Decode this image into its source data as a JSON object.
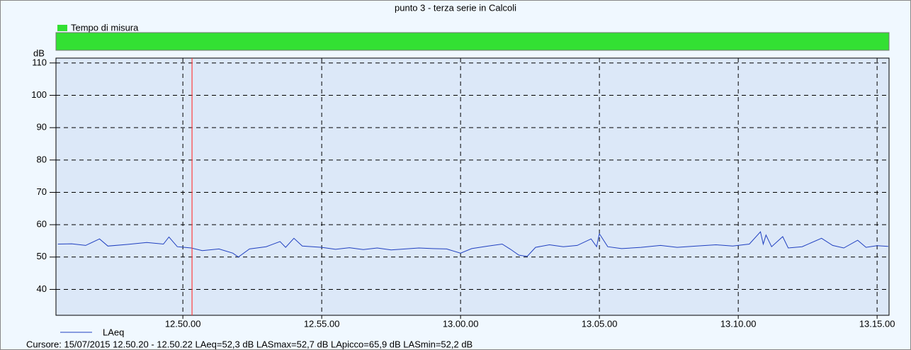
{
  "chart_data": {
    "type": "line",
    "title": "punto 3 - terza serie in Calcoli",
    "ylabel": "dB",
    "band": {
      "name": "Tempo di misura",
      "color": "#33e033"
    },
    "x": [
      765.5,
      766.0,
      766.5,
      767.0,
      767.3,
      768.0,
      768.7,
      769.3,
      769.5,
      769.8,
      770.3,
      770.7,
      771.3,
      771.8,
      772.0,
      772.4,
      773.0,
      773.5,
      773.7,
      774.0,
      774.3,
      775.0,
      775.5,
      776.0,
      776.5,
      777.0,
      777.5,
      778.0,
      778.5,
      779.0,
      779.5,
      780.0,
      780.4,
      781.0,
      781.5,
      781.8,
      782.1,
      782.4,
      782.7,
      783.2,
      783.7,
      784.2,
      784.7,
      784.9,
      785.0,
      785.3,
      785.8,
      786.5,
      787.2,
      787.8,
      788.5,
      789.2,
      789.8,
      790.4,
      790.8,
      790.9,
      791.0,
      791.2,
      791.6,
      791.8,
      792.3,
      793.0,
      793.4,
      793.8,
      794.3,
      794.6,
      795.0,
      795.4
    ],
    "series": [
      {
        "name": "LAeq",
        "color": "#2040c0",
        "values": [
          54.0,
          54.1,
          53.6,
          55.6,
          53.4,
          53.9,
          54.5,
          54.0,
          56.2,
          53.2,
          52.8,
          52.0,
          52.5,
          51.2,
          50.0,
          52.5,
          53.2,
          54.8,
          53.0,
          55.8,
          53.4,
          53.0,
          52.4,
          52.9,
          52.3,
          52.8,
          52.2,
          52.5,
          52.8,
          52.6,
          52.5,
          51.2,
          52.6,
          53.4,
          54.0,
          52.4,
          50.6,
          50.2,
          53.0,
          53.8,
          53.2,
          53.6,
          55.6,
          53.2,
          57.2,
          53.2,
          52.6,
          53.0,
          53.6,
          53.0,
          53.4,
          53.8,
          53.4,
          54.0,
          57.8,
          54.0,
          56.8,
          53.2,
          56.3,
          52.8,
          53.2,
          55.8,
          53.6,
          52.8,
          55.2,
          53.0,
          53.5,
          53.3
        ]
      }
    ],
    "xlim": [
      765.43,
      795.43
    ],
    "xticks": [
      {
        "value": 770,
        "label": "12.50.00"
      },
      {
        "value": 775,
        "label": "12.55.00"
      },
      {
        "value": 780,
        "label": "13.00.00"
      },
      {
        "value": 785,
        "label": "13.05.00"
      },
      {
        "value": 790,
        "label": "13.10.00"
      },
      {
        "value": 795,
        "label": "13.15.00"
      }
    ],
    "ylim": [
      32,
      111.5
    ],
    "yticks": [
      40,
      50,
      60,
      70,
      80,
      90,
      100,
      110
    ],
    "grid": true,
    "cursor": {
      "x": 770.33,
      "color": "#ff4040"
    },
    "status": "Cursore: 15/07/2015 12.50.20 - 12.50.22  LAeq=52,3 dB  LASmax=52,7 dB  LApicco=65,9 dB  LASmin=52,2 dB"
  }
}
